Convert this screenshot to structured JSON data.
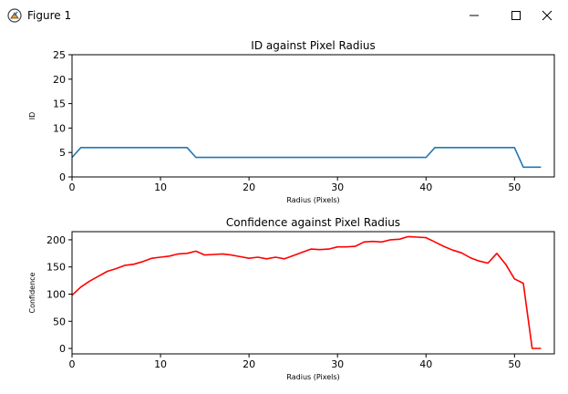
{
  "window": {
    "title": "Figure 1",
    "icon": "matplotlib-figure-icon",
    "controls": [
      "minimize-icon",
      "maximize-icon",
      "close-icon"
    ]
  },
  "chart_data": [
    {
      "type": "line",
      "title": "ID against Pixel Radius",
      "xlabel": "Radius (Pixels)",
      "ylabel": "ID",
      "xlim": [
        0,
        54.5
      ],
      "ylim": [
        0,
        25
      ],
      "xticks": [
        0,
        10,
        20,
        30,
        40,
        50
      ],
      "yticks": [
        0,
        5,
        10,
        15,
        20,
        25
      ],
      "grid": false,
      "series": [
        {
          "color": "#1f77b4",
          "x": [
            0,
            1,
            13,
            14,
            40,
            41,
            50,
            51,
            53
          ],
          "y": [
            4,
            6,
            6,
            4,
            4,
            6,
            6,
            2,
            2
          ]
        }
      ]
    },
    {
      "type": "line",
      "title": "Confidence against Pixel Radius",
      "xlabel": "Radius (Pixels)",
      "ylabel": "Confidence",
      "xlim": [
        0,
        54.5
      ],
      "ylim": [
        -10,
        215
      ],
      "xticks": [
        0,
        10,
        20,
        30,
        40,
        50
      ],
      "yticks": [
        0,
        50,
        100,
        150,
        200
      ],
      "grid": false,
      "series": [
        {
          "color": "#ff0000",
          "x": [
            0,
            1,
            2,
            3,
            4,
            5,
            6,
            7,
            8,
            9,
            10,
            11,
            12,
            13,
            14,
            15,
            16,
            17,
            18,
            19,
            20,
            21,
            22,
            23,
            24,
            25,
            26,
            27,
            28,
            29,
            30,
            31,
            32,
            33,
            34,
            35,
            36,
            37,
            38,
            39,
            40,
            41,
            42,
            43,
            44,
            45,
            46,
            47,
            48,
            49,
            50,
            51,
            52,
            53
          ],
          "y": [
            98,
            113,
            124,
            133,
            142,
            147,
            153,
            155,
            160,
            166,
            168,
            170,
            174,
            175,
            179,
            172,
            173,
            174,
            172,
            169,
            166,
            168,
            165,
            168,
            165,
            171,
            177,
            183,
            182,
            183,
            187,
            187,
            188,
            196,
            197,
            196,
            200,
            201,
            206,
            205,
            204,
            196,
            188,
            181,
            176,
            167,
            161,
            157,
            175,
            155,
            128,
            120,
            0,
            0
          ]
        }
      ]
    }
  ]
}
